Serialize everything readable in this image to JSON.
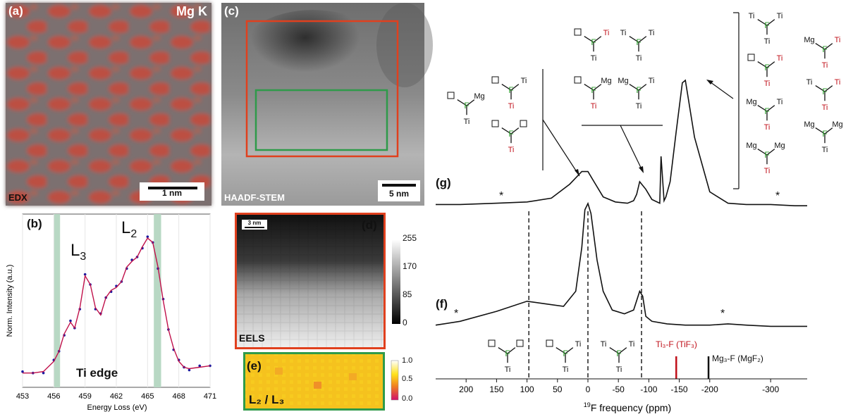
{
  "panel_a": {
    "label": "(a)",
    "element": "Mg K",
    "technique": "EDX",
    "scalebar": "1 nm"
  },
  "panel_c": {
    "label": "(c)",
    "technique": "HAADF-STEM",
    "scalebar": "5 nm"
  },
  "panel_d": {
    "label": "(d)",
    "technique": "EELS",
    "scalebar": "3 nm",
    "colorbar_ticks": [
      "255",
      "170",
      "85",
      "0"
    ]
  },
  "panel_e": {
    "label": "(e)",
    "ratio_label": "L₂ / L₃",
    "colorbar_ticks": [
      "1.0",
      "0.5",
      "0.0"
    ]
  },
  "panel_b": {
    "label": "(b)",
    "edge_label": "Ti edge",
    "peak_L3": "L",
    "peak_L3_sub": "3",
    "peak_L2": "L",
    "peak_L2_sub": "2"
  },
  "panel_g": {
    "label": "(g)",
    "asterisk": "*"
  },
  "panel_f": {
    "label": "(f)",
    "asterisk": "*",
    "ref_tif3": "Ti₃-F (TiF₃)",
    "ref_mgf2": "Mg₃-F (MgF₂)"
  },
  "colors": {
    "red_ti": "#c0101a",
    "green_f": "#2a9a2a",
    "red_box": "#e0401e",
    "green_box": "#2f9a4a",
    "fit_line": "#c0104a",
    "data_points": "#1a1aa0",
    "highlight": "#b8d8c4"
  },
  "chart_data": [
    {
      "type": "line",
      "title": "",
      "xlabel": "Energy Loss (eV)",
      "ylabel": "Norm. Intensity (a.u.)",
      "x_ticks": [
        "453",
        "456",
        "459",
        "462",
        "465",
        "468",
        "471"
      ],
      "xlim": [
        453,
        471
      ],
      "highlight_bands_ev": [
        [
          456.0,
          456.6
        ],
        [
          465.6,
          466.3
        ]
      ],
      "series": [
        {
          "x": [
            453,
            454,
            455,
            456,
            456.5,
            457,
            457.6,
            458,
            458.5,
            459,
            459.5,
            460,
            460.5,
            461,
            461.5,
            462,
            462.5,
            463,
            463.5,
            464,
            464.5,
            465,
            465.5,
            466,
            466.5,
            467,
            467.5,
            468,
            468.5,
            469,
            470,
            471
          ],
          "y": [
            0.05,
            0.05,
            0.06,
            0.13,
            0.2,
            0.32,
            0.4,
            0.36,
            0.5,
            0.72,
            0.66,
            0.5,
            0.45,
            0.57,
            0.62,
            0.64,
            0.68,
            0.78,
            0.82,
            0.85,
            0.92,
            0.98,
            0.95,
            0.78,
            0.55,
            0.35,
            0.22,
            0.13,
            0.09,
            0.08,
            0.09,
            0.1
          ]
        }
      ]
    },
    {
      "type": "line",
      "title": "",
      "xlabel": "19F frequency (ppm)",
      "x_ticks": [
        "200",
        "150",
        "100",
        "50",
        "0",
        "-50",
        "-100",
        "-150",
        "-200",
        "-300"
      ],
      "xlim": [
        250,
        -360
      ],
      "series": [
        {
          "x": [
            250,
            210,
            150,
            100,
            60,
            30,
            10,
            0,
            -10,
            -25,
            -45,
            -65,
            -75,
            -80,
            -85,
            -95,
            -105,
            -118,
            -120,
            -125,
            -128,
            -135,
            -145,
            -155,
            -160,
            -175,
            -200,
            -230,
            -260,
            -300,
            -340,
            -360
          ],
          "y": [
            0.02,
            0.02,
            0.03,
            0.04,
            0.07,
            0.18,
            0.28,
            0.28,
            0.2,
            0.08,
            0.04,
            0.03,
            0.05,
            0.1,
            0.2,
            0.14,
            0.06,
            0.03,
            0.4,
            0.05,
            0.08,
            0.2,
            0.6,
            0.98,
            1.0,
            0.55,
            0.12,
            0.03,
            0.02,
            0.02,
            0.01,
            0.01
          ]
        },
        {
          "x": [
            250,
            210,
            150,
            100,
            70,
            40,
            20,
            10,
            5,
            0,
            -5,
            -15,
            -25,
            -40,
            -60,
            -75,
            -85,
            -90,
            -95,
            -105,
            -130,
            -160,
            -200,
            -230,
            -260,
            -300,
            -340,
            -360
          ],
          "y": [
            0.03,
            0.06,
            0.14,
            0.22,
            0.2,
            0.18,
            0.3,
            0.65,
            0.95,
            1.0,
            0.92,
            0.55,
            0.3,
            0.15,
            0.12,
            0.15,
            0.3,
            0.26,
            0.1,
            0.06,
            0.04,
            0.03,
            0.03,
            0.04,
            0.03,
            0.02,
            0.02,
            0.02
          ]
        }
      ],
      "dashed_markers_ppm": [
        97,
        0,
        -88
      ],
      "reference_lines_ppm": [
        -145,
        -198
      ]
    }
  ]
}
